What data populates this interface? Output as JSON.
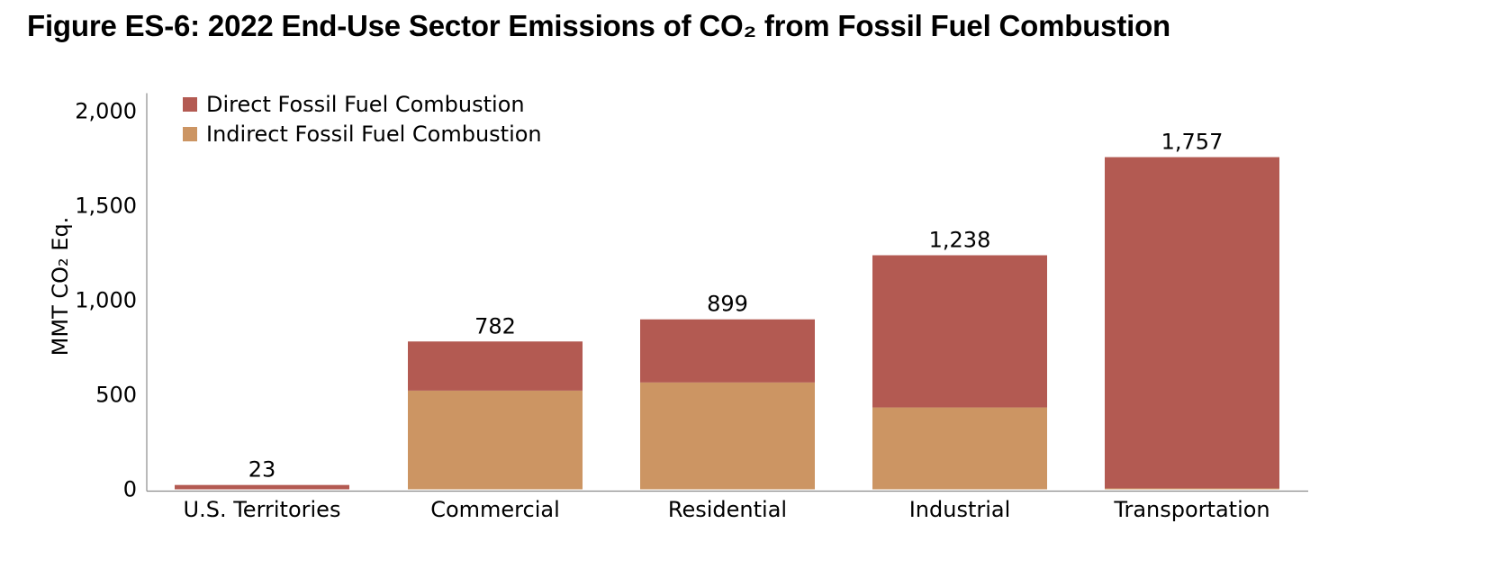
{
  "chart_data": {
    "type": "bar",
    "stacked": true,
    "title": "Figure ES-6: 2022 End-Use Sector Emissions of CO₂ from Fossil Fuel Combustion",
    "ylabel": "MMT CO₂ Eq.",
    "xlabel": "",
    "ylim": [
      0,
      2000
    ],
    "yticks": [
      0,
      500,
      1000,
      1500,
      2000
    ],
    "ytick_labels": [
      "0",
      "500",
      "1,000",
      "1,500",
      "2,000"
    ],
    "categories": [
      "U.S. Territories",
      "Commercial",
      "Residential",
      "Industrial",
      "Transportation"
    ],
    "series": [
      {
        "name": "Indirect Fossil Fuel Combustion",
        "color": "#CC9563",
        "values": [
          0,
          522,
          565,
          433,
          5
        ]
      },
      {
        "name": "Direct Fossil Fuel Combustion",
        "color": "#B35A52",
        "values": [
          23,
          260,
          334,
          805,
          1752
        ]
      }
    ],
    "totals": [
      23,
      782,
      899,
      1238,
      1757
    ],
    "total_labels": [
      "23",
      "782",
      "899",
      "1,238",
      "1,757"
    ],
    "legend": {
      "position": "top-left",
      "entries": [
        "Direct Fossil Fuel Combustion",
        "Indirect Fossil Fuel Combustion"
      ]
    },
    "grid": false
  }
}
